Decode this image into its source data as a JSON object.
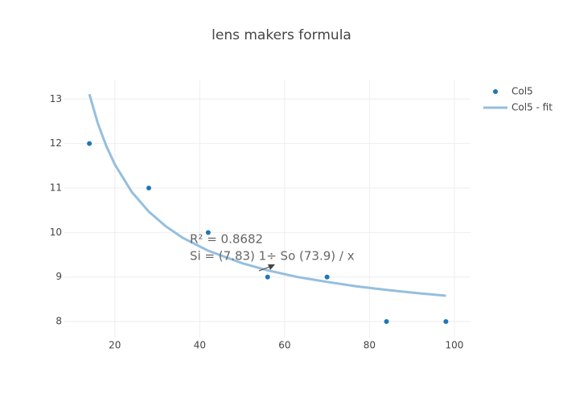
{
  "chart_data": {
    "type": "scatter",
    "title": "lens makers formula",
    "series": [
      {
        "name": "Col5",
        "type": "scatter",
        "color": "#1f77b4",
        "x": [
          14,
          28,
          42,
          56,
          70,
          84,
          98
        ],
        "values": [
          12,
          11,
          10,
          9,
          9,
          8,
          8
        ]
      },
      {
        "name": "Col5 - fit",
        "type": "line",
        "color": "#94bfdf",
        "x": [
          14,
          16,
          18,
          20,
          24,
          28,
          32,
          36,
          42,
          50,
          56,
          63,
          70,
          77,
          84,
          91,
          98
        ],
        "values": [
          13.11,
          12.45,
          11.94,
          11.53,
          10.91,
          10.47,
          10.14,
          9.88,
          9.59,
          9.31,
          9.15,
          9.0,
          8.89,
          8.79,
          8.71,
          8.64,
          8.58
        ]
      }
    ],
    "annotations": [
      "R² = 0.8682",
      "Si = (7.83) 1÷ So (73.9) / x"
    ],
    "xlim": [
      8.1,
      103.8
    ],
    "xticks": [
      20,
      40,
      60,
      80,
      100
    ],
    "ylim": [
      7.64,
      13.42
    ],
    "yticks": [
      8,
      9,
      10,
      11,
      12,
      13
    ],
    "grid": true,
    "legend": "top-right"
  }
}
